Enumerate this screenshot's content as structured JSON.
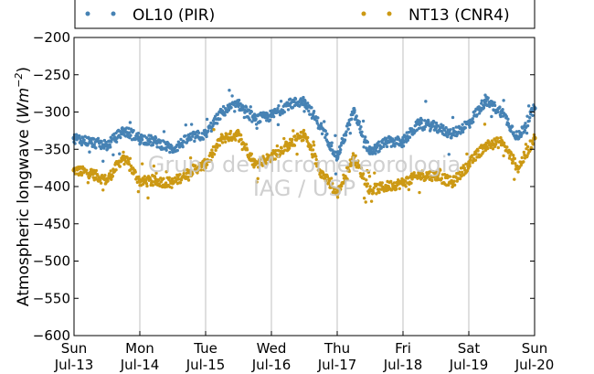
{
  "chart_data": {
    "type": "scatter",
    "title": "",
    "xlabel": "",
    "ylabel": "Atmospheric longwave",
    "ylabel_unit_math": "Wm",
    "ylabel_unit_exp": "−2",
    "ylim": [
      -600,
      -200
    ],
    "yticks": [
      -200,
      -250,
      -300,
      -350,
      -400,
      -450,
      -500,
      -550,
      -600
    ],
    "ytick_labels": [
      "−200",
      "−250",
      "−300",
      "−350",
      "−400",
      "−450",
      "−500",
      "−550",
      "−600"
    ],
    "xlim": [
      0,
      7
    ],
    "xticks": [
      {
        "value": 0,
        "day": "Sun",
        "date": "Jul-13"
      },
      {
        "value": 1,
        "day": "Mon",
        "date": "Jul-14"
      },
      {
        "value": 2,
        "day": "Tue",
        "date": "Jul-15"
      },
      {
        "value": 3,
        "day": "Wed",
        "date": "Jul-16"
      },
      {
        "value": 4,
        "day": "Thu",
        "date": "Jul-17"
      },
      {
        "value": 5,
        "day": "Fri",
        "date": "Jul-18"
      },
      {
        "value": 6,
        "day": "Sat",
        "date": "Jul-19"
      },
      {
        "value": 7,
        "day": "Sun",
        "date": "Jul-20"
      }
    ],
    "grid": "vertical",
    "legend_position": "top",
    "watermark_lines": [
      "Grupo de Micrometeorologia",
      "IAG / USP"
    ],
    "series": [
      {
        "name": "OL10 (PIR)",
        "color": "#4682b4",
        "x": [
          0,
          0.25,
          0.5,
          0.75,
          1.0,
          1.25,
          1.5,
          1.75,
          2.0,
          2.25,
          2.5,
          2.75,
          3.0,
          3.25,
          3.5,
          3.75,
          4.0,
          4.25,
          4.5,
          4.75,
          5.0,
          5.25,
          5.5,
          5.75,
          6.0,
          6.25,
          6.5,
          6.75,
          7.0
        ],
        "values": [
          -335,
          -340,
          -345,
          -325,
          -335,
          -340,
          -350,
          -335,
          -330,
          -300,
          -290,
          -310,
          -305,
          -290,
          -285,
          -320,
          -360,
          -300,
          -355,
          -340,
          -340,
          -315,
          -320,
          -330,
          -315,
          -285,
          -300,
          -335,
          -295
        ]
      },
      {
        "name": "NT13 (CNR4)",
        "color": "#cc9914",
        "x": [
          0,
          0.25,
          0.5,
          0.75,
          1.0,
          1.25,
          1.5,
          1.75,
          2.0,
          2.25,
          2.5,
          2.75,
          3.0,
          3.25,
          3.5,
          3.75,
          4.0,
          4.25,
          4.5,
          4.75,
          5.0,
          5.25,
          5.5,
          5.75,
          6.0,
          6.25,
          6.5,
          6.75,
          7.0
        ],
        "values": [
          -378,
          -382,
          -392,
          -360,
          -393,
          -393,
          -395,
          -380,
          -370,
          -335,
          -330,
          -370,
          -360,
          -345,
          -330,
          -380,
          -410,
          -360,
          -405,
          -400,
          -395,
          -385,
          -385,
          -395,
          -370,
          -345,
          -340,
          -375,
          -335
        ]
      }
    ]
  }
}
